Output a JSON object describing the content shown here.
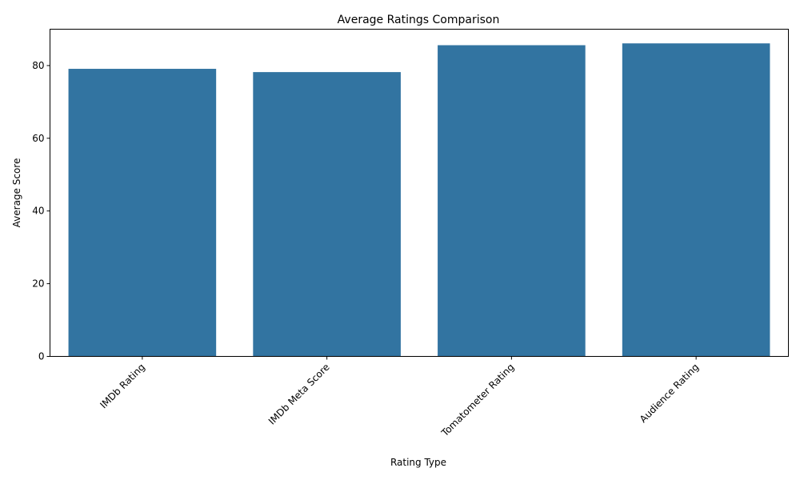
{
  "chart_data": {
    "type": "bar",
    "title": "Average Ratings Comparison",
    "xlabel": "Rating Type",
    "ylabel": "Average Score",
    "categories": [
      "IMDb Rating",
      "IMDb Meta Score",
      "Tomatometer Rating",
      "Audience Rating"
    ],
    "values": [
      79.1,
      78.2,
      85.6,
      86.1
    ],
    "ylim": [
      0,
      90
    ],
    "yticks": [
      0,
      20,
      40,
      60,
      80
    ],
    "ytick_labels": [
      "0",
      "20",
      "40",
      "60",
      "80"
    ],
    "bar_color": "#3274a1",
    "grid": false,
    "legend": "none"
  }
}
